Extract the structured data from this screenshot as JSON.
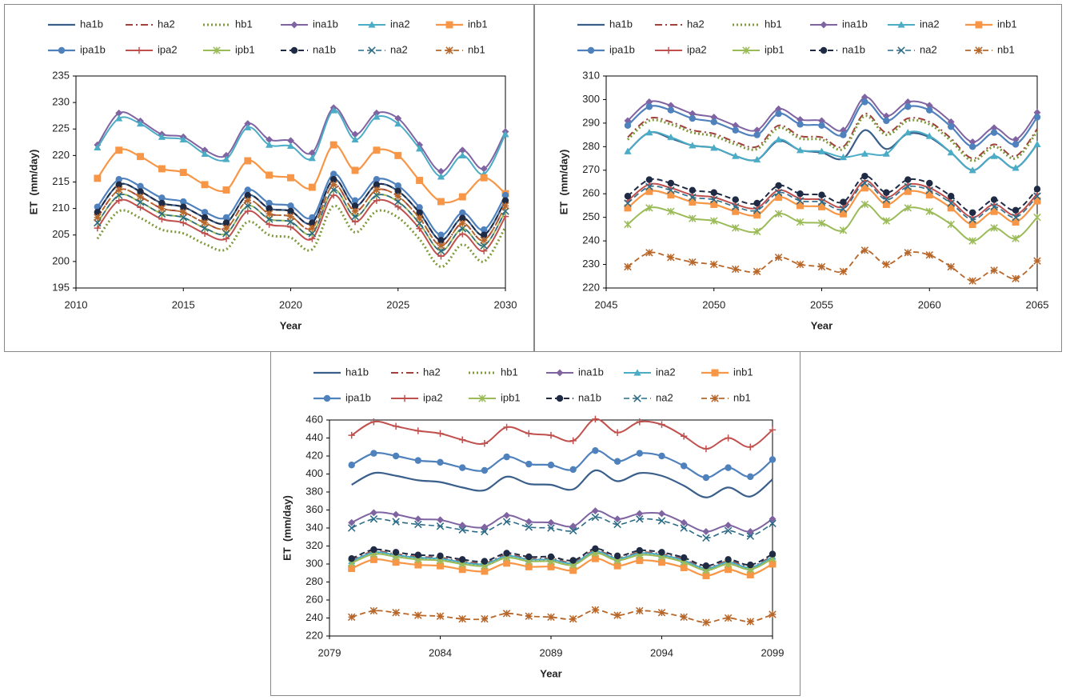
{
  "chart_data": [
    {
      "type": "line",
      "y_label": "ET  (mm/day)",
      "x_label": "Year",
      "x": [
        2011,
        2012,
        2013,
        2014,
        2015,
        2016,
        2017,
        2018,
        2019,
        2020,
        2021,
        2022,
        2023,
        2024,
        2025,
        2026,
        2027,
        2028,
        2029,
        2030
      ],
      "xlim": [
        2010,
        2030
      ],
      "xticks": [
        2010,
        2015,
        2020,
        2025,
        2030
      ],
      "ylim": [
        195,
        235
      ],
      "yticks": [
        195,
        200,
        205,
        210,
        215,
        220,
        225,
        230,
        235
      ],
      "series": [
        {
          "name": "ha1b",
          "color": "#3a5f8a",
          "values": [
            209.3,
            214.5,
            213.2,
            211,
            210.3,
            208.3,
            207.3,
            212.5,
            210,
            209.5,
            207.3,
            215.5,
            210.5,
            214.5,
            213.3,
            209.2,
            204,
            208.2,
            205,
            211.5
          ]
        },
        {
          "name": "ha2",
          "color": "#a0413c",
          "values": [
            208.3,
            213.5,
            212.2,
            210,
            209.3,
            207.3,
            206.3,
            211.5,
            209,
            208.5,
            206.3,
            214.5,
            209.5,
            213.5,
            212.3,
            208.2,
            203,
            207.2,
            204,
            210.5
          ]
        },
        {
          "name": "hb1",
          "color": "#7f9a3a",
          "values": [
            204.3,
            209.5,
            208.2,
            206,
            205.3,
            203.3,
            202.3,
            207.5,
            205,
            204.5,
            202.3,
            210.5,
            205.5,
            209.5,
            208.3,
            204.2,
            199,
            203.2,
            200,
            206.5
          ]
        },
        {
          "name": "ina1b",
          "color": "#8064a2",
          "values": [
            222,
            228,
            226.5,
            224,
            223.5,
            221,
            220,
            226,
            223,
            222.8,
            220.5,
            229,
            224,
            228,
            227,
            222,
            217,
            221,
            217.5,
            224.5
          ]
        },
        {
          "name": "ina2",
          "color": "#4bacc6",
          "values": [
            221.5,
            227,
            226,
            223.5,
            223,
            220.3,
            219.3,
            225.3,
            222,
            221.8,
            219.5,
            228.5,
            223,
            227.3,
            226,
            221.3,
            216,
            220,
            216.5,
            224
          ]
        },
        {
          "name": "inb1",
          "color": "#f79646",
          "values": [
            215.7,
            221,
            219.8,
            217.5,
            216.8,
            214.5,
            213.5,
            219,
            216.3,
            215.8,
            214,
            222,
            217.2,
            221,
            220,
            215.3,
            211.3,
            212.2,
            215.8,
            212.8
          ]
        },
        {
          "name": "ipa1b",
          "color": "#4f81bd",
          "values": [
            210.3,
            215.5,
            214.2,
            212,
            211.3,
            209.3,
            208.3,
            213.5,
            211,
            210.5,
            208.3,
            216.5,
            211.5,
            215.5,
            214.3,
            210.2,
            205,
            209.2,
            206,
            212.5
          ]
        },
        {
          "name": "ipa2",
          "color": "#c0504d",
          "values": [
            206.3,
            211.5,
            210.2,
            208,
            207.3,
            205.3,
            204.3,
            209.5,
            207,
            206.5,
            204.3,
            212.5,
            207.5,
            211.5,
            210.3,
            206.2,
            201,
            205.2,
            202,
            208.5
          ]
        },
        {
          "name": "ipb1",
          "color": "#9bbb59",
          "values": [
            207.3,
            212.5,
            211.2,
            209,
            208.3,
            206.3,
            205.3,
            210.5,
            208,
            207.5,
            205.3,
            213.5,
            208.5,
            212.5,
            211.3,
            207.2,
            202,
            206.2,
            203,
            209.5
          ]
        },
        {
          "name": "na1b",
          "color": "#1f2a44",
          "values": [
            209.3,
            214.5,
            213.2,
            211,
            210.3,
            208.3,
            207.3,
            212.5,
            210,
            209.5,
            207.3,
            215.5,
            210.5,
            214.5,
            213.3,
            209.2,
            204,
            208.2,
            205,
            211.5
          ]
        },
        {
          "name": "na2",
          "color": "#2c6b87",
          "values": [
            207.3,
            212.5,
            211.2,
            209,
            208.3,
            206.3,
            205.3,
            210.5,
            208,
            207.5,
            205.3,
            213.5,
            208.5,
            212.5,
            211.3,
            207.2,
            202,
            206.2,
            203,
            209.5
          ]
        },
        {
          "name": "nb1",
          "color": "#b8672a",
          "values": [
            208.3,
            213.5,
            212.2,
            210,
            209.3,
            207.3,
            206.3,
            211.5,
            209,
            208.5,
            206.3,
            214.5,
            209.5,
            213.5,
            212.3,
            208.2,
            203,
            207.2,
            204,
            210.5
          ]
        }
      ]
    },
    {
      "type": "line",
      "y_label": "ET  (mm/day)",
      "x_label": "Year",
      "x": [
        2046,
        2047,
        2048,
        2049,
        2050,
        2051,
        2052,
        2053,
        2054,
        2055,
        2056,
        2057,
        2058,
        2059,
        2060,
        2061,
        2062,
        2063,
        2064,
        2065
      ],
      "xlim": [
        2045,
        2065
      ],
      "xticks": [
        2045,
        2050,
        2055,
        2060,
        2065
      ],
      "ylim": [
        220,
        310
      ],
      "yticks": [
        220,
        230,
        240,
        250,
        260,
        270,
        280,
        290,
        300,
        310
      ],
      "series": [
        {
          "name": "ha1b",
          "color": "#3a5f8a",
          "values": [
            278,
            286,
            283.5,
            280.5,
            279.5,
            276,
            274.5,
            282.5,
            278.5,
            277.5,
            275,
            287,
            279,
            285.5,
            284,
            277.5,
            270,
            276,
            271,
            281
          ]
        },
        {
          "name": "ha2",
          "color": "#a0413c",
          "values": [
            284,
            292,
            290.5,
            287,
            285.5,
            282,
            280,
            289,
            284.5,
            284,
            280,
            294,
            286,
            292,
            290.5,
            283.5,
            275,
            281,
            276,
            287.5
          ]
        },
        {
          "name": "hb1",
          "color": "#7f9a3a",
          "values": [
            283,
            291,
            289.5,
            286,
            284.5,
            281,
            279,
            288,
            283.5,
            283,
            279,
            293,
            285,
            291,
            289.5,
            282.5,
            274,
            280,
            275,
            286.5
          ]
        },
        {
          "name": "ina1b",
          "color": "#8064a2",
          "values": [
            291,
            299,
            297.5,
            294,
            292.5,
            289,
            287,
            296,
            291.5,
            291,
            287,
            301,
            293,
            299,
            297.5,
            290.5,
            282,
            288,
            283,
            294.5
          ]
        },
        {
          "name": "ina2",
          "color": "#4bacc6",
          "values": [
            278,
            286,
            284,
            280.5,
            279.5,
            276,
            274.5,
            283,
            278.5,
            278,
            275.5,
            277,
            277,
            286,
            284.5,
            277.5,
            270,
            276,
            271,
            281
          ]
        },
        {
          "name": "inb1",
          "color": "#f79646",
          "values": [
            254,
            261,
            259.5,
            256.5,
            255.5,
            252.5,
            251,
            258.5,
            255,
            254.5,
            251.5,
            262.5,
            255.5,
            261,
            259.5,
            254,
            247,
            252.5,
            248,
            257
          ]
        },
        {
          "name": "ipa1b",
          "color": "#4f81bd",
          "values": [
            289,
            297,
            295.5,
            292,
            290.5,
            287,
            285,
            294,
            289.5,
            289,
            285,
            299,
            291,
            297,
            295.5,
            288.5,
            280,
            286,
            281,
            292.5
          ]
        },
        {
          "name": "ipa2",
          "color": "#c0504d",
          "values": [
            257,
            264,
            262.5,
            259.5,
            258.5,
            255.5,
            254,
            261.5,
            258,
            257.5,
            254.5,
            265.5,
            258.5,
            264,
            262.5,
            257,
            250,
            255.5,
            251,
            260
          ]
        },
        {
          "name": "ipb1",
          "color": "#9bbb59",
          "values": [
            247,
            254,
            252.5,
            249.5,
            248.5,
            245.5,
            244,
            251.5,
            248,
            247.5,
            244.5,
            255.5,
            248.5,
            254,
            252.5,
            247,
            240,
            245.5,
            241,
            250
          ]
        },
        {
          "name": "na1b",
          "color": "#1f2a44",
          "values": [
            259,
            266,
            264.5,
            261.5,
            260.5,
            257.5,
            256,
            263.5,
            260,
            259.5,
            256.5,
            267.5,
            260.5,
            266,
            264.5,
            259,
            252,
            257.5,
            253,
            262
          ]
        },
        {
          "name": "na2",
          "color": "#2c6b87",
          "values": [
            256,
            263,
            261.5,
            258.5,
            257.5,
            254.5,
            253,
            260.5,
            257,
            256.5,
            253.5,
            264.5,
            257.5,
            263,
            261.5,
            256,
            249,
            254.5,
            250,
            259
          ]
        },
        {
          "name": "nb1",
          "color": "#b8672a",
          "values": [
            229,
            235,
            233,
            231,
            230,
            228,
            227,
            233,
            230,
            229,
            227,
            236,
            230,
            235,
            234,
            229,
            223,
            227.5,
            224,
            231.5
          ]
        }
      ]
    },
    {
      "type": "line",
      "y_label": "ET  (mm/day)",
      "x_label": "Year",
      "x": [
        2080,
        2081,
        2082,
        2083,
        2084,
        2085,
        2086,
        2087,
        2088,
        2089,
        2090,
        2091,
        2092,
        2093,
        2094,
        2095,
        2096,
        2097,
        2098,
        2099
      ],
      "xlim": [
        2079,
        2099
      ],
      "xticks": [
        2079,
        2084,
        2089,
        2094,
        2099
      ],
      "ylim": [
        220,
        460
      ],
      "yticks": [
        220,
        240,
        260,
        280,
        300,
        320,
        340,
        360,
        380,
        400,
        420,
        440,
        460
      ],
      "series": [
        {
          "name": "ha1b",
          "color": "#3a5f8a",
          "values": [
            388,
            401,
            398,
            393,
            391,
            385,
            382,
            397,
            389,
            388,
            383,
            404,
            392,
            401,
            398,
            387,
            374,
            385,
            375,
            394
          ]
        },
        {
          "name": "ha2",
          "color": "#a0413c",
          "values": [
            304,
            314,
            311,
            308,
            307,
            303,
            301,
            310,
            306,
            306,
            302,
            315,
            307,
            313,
            311,
            305,
            296,
            303,
            297,
            309
          ]
        },
        {
          "name": "hb1",
          "color": "#7f9a3a",
          "values": [
            302,
            312,
            309,
            306,
            305,
            301,
            299,
            308,
            304,
            304,
            300,
            313,
            305,
            311,
            309,
            303,
            294,
            301,
            295,
            307
          ]
        },
        {
          "name": "ina1b",
          "color": "#8064a2",
          "values": [
            346,
            357,
            355,
            350,
            349,
            343,
            341,
            354,
            347,
            346,
            342,
            359,
            350,
            356,
            356,
            346,
            336,
            343,
            336,
            350
          ]
        },
        {
          "name": "ina2",
          "color": "#4bacc6",
          "values": [
            303,
            313,
            310,
            307,
            306,
            302,
            300,
            309,
            305,
            305,
            301,
            314,
            306,
            312,
            310,
            304,
            295,
            302,
            296,
            308
          ]
        },
        {
          "name": "inb1",
          "color": "#f79646",
          "values": [
            295,
            305,
            302,
            299,
            298,
            294,
            292,
            301,
            297,
            297,
            293,
            306,
            298,
            304,
            302,
            296,
            287,
            294,
            288,
            300
          ]
        },
        {
          "name": "ipa1b",
          "color": "#4f81bd",
          "values": [
            410,
            423,
            420,
            415,
            413,
            407,
            404,
            419,
            411,
            410,
            405,
            426,
            414,
            423,
            420,
            409,
            396,
            407,
            397,
            416
          ]
        },
        {
          "name": "ipa2",
          "color": "#c0504d",
          "values": [
            443,
            458,
            453,
            448,
            445,
            438,
            434,
            452,
            445,
            443,
            437,
            461,
            446,
            458,
            455,
            442,
            428,
            440,
            430,
            449
          ]
        },
        {
          "name": "ipb1",
          "color": "#9bbb59",
          "values": [
            301,
            311,
            308,
            305,
            304,
            300,
            298,
            307,
            303,
            303,
            299,
            312,
            304,
            310,
            308,
            302,
            293,
            300,
            294,
            306
          ]
        },
        {
          "name": "na1b",
          "color": "#1f2a44",
          "values": [
            306,
            316,
            313,
            310,
            309,
            305,
            303,
            312,
            308,
            308,
            304,
            317,
            309,
            315,
            313,
            307,
            298,
            305,
            299,
            311
          ]
        },
        {
          "name": "na2",
          "color": "#2c6b87",
          "values": [
            340,
            350,
            347,
            344,
            342,
            338,
            336,
            347,
            341,
            340,
            337,
            352,
            344,
            350,
            348,
            340,
            329,
            337,
            331,
            345
          ]
        },
        {
          "name": "nb1",
          "color": "#b8672a",
          "values": [
            241,
            248,
            246,
            243,
            242,
            239,
            239,
            245,
            242,
            241,
            239,
            249,
            243,
            248,
            246,
            241,
            235,
            240,
            236,
            244
          ]
        }
      ]
    }
  ]
}
